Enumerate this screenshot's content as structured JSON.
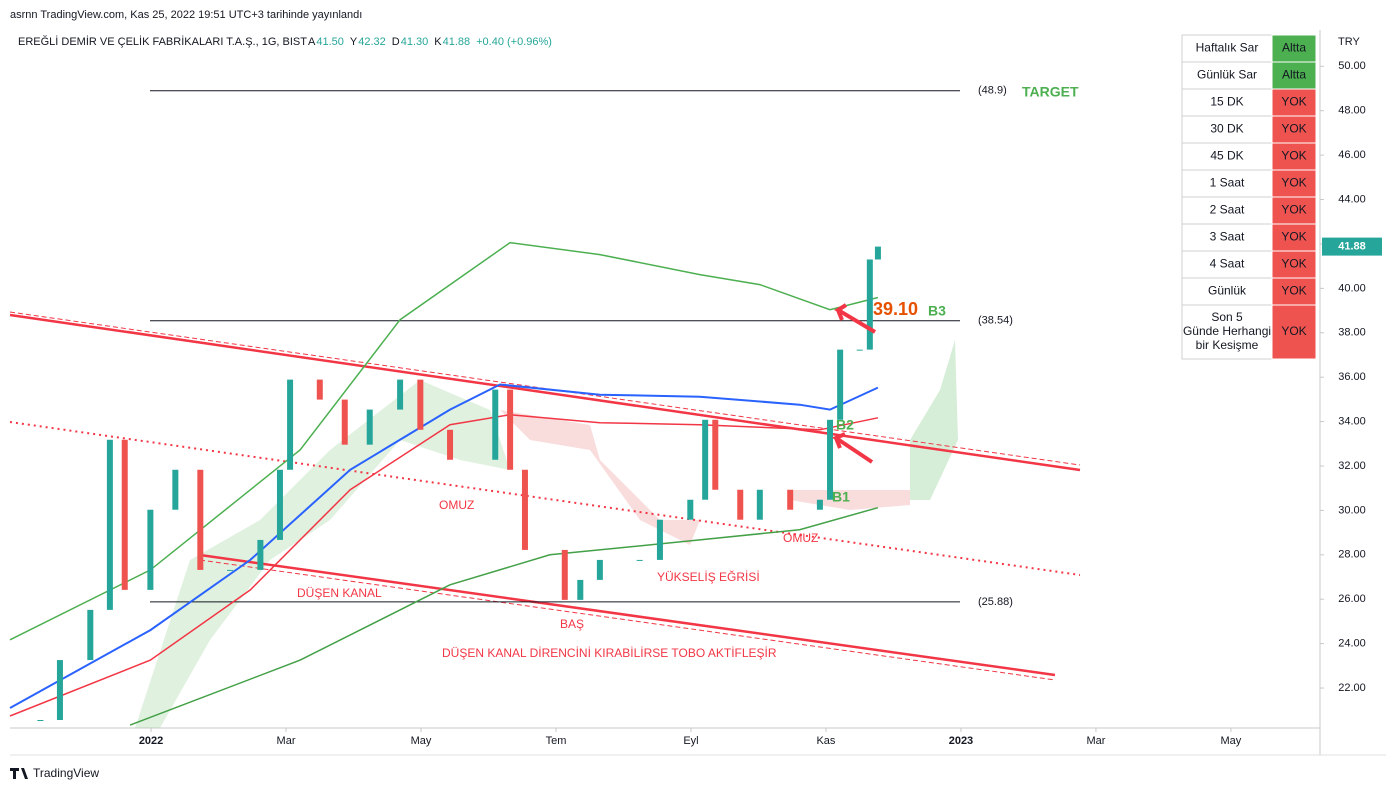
{
  "header": {
    "published": "asrnn TradingView.com, Kas 25, 2022 19:51 UTC+3 tarihinde yayınlandı",
    "symbol": "EREĞLİ DEMİR VE ÇELİK FABRİKALARI T.A.Ş., 1G, BIST",
    "ohlc": [
      {
        "key": "A",
        "value": "41.50"
      },
      {
        "key": "Y",
        "value": "42.32"
      },
      {
        "key": "D",
        "value": "41.30"
      },
      {
        "key": "K",
        "value": "41.88"
      }
    ],
    "change": "+0.40 (+0.96%)",
    "currency": "TRY",
    "footer": "TradingView"
  },
  "chart_data": {
    "type": "candlestick",
    "x": [
      -1.64,
      -1.35,
      -0.9,
      -0.61,
      -0.39,
      -0.01,
      0.36,
      0.73,
      1.17,
      1.62,
      1.91,
      2.06,
      2.5,
      2.87,
      3.24,
      3.69,
      3.99,
      4.43,
      5.1,
      5.32,
      5.54,
      6.13,
      6.36,
      6.65,
      7.24,
      7.54,
      7.99,
      8.21,
      8.36,
      8.73,
      9.02,
      9.47,
      9.91,
      10.06,
      10.21,
      10.5,
      10.65,
      10.77
    ],
    "values": [
      20.56,
      23.26,
      25.52,
      33.18,
      26.42,
      30.03,
      31.83,
      27.32,
      27.32,
      28.67,
      31.83,
      35.89,
      34.99,
      32.96,
      34.54,
      35.89,
      33.63,
      32.28,
      35.44,
      31.83,
      28.22,
      25.97,
      26.87,
      27.77,
      27.77,
      29.58,
      30.48,
      34.08,
      30.93,
      29.58,
      30.93,
      30.03,
      30.48,
      34.08,
      37.24,
      37.24,
      41.3,
      41.88
    ],
    "series": [
      {
        "color": "#2962ff",
        "x": [
          -2.09,
          -0.01,
          1.47,
          2.95,
          4.43,
          5.17,
          6.65,
          8.13,
          9.61,
          10.06,
          10.77
        ],
        "values": [
          21.1,
          24.61,
          27.77,
          31.83,
          34.54,
          35.67,
          35.21,
          35.12,
          34.76,
          34.54,
          35.53
        ]
      },
      {
        "color": "#f23645",
        "x": [
          -2.09,
          -0.01,
          1.47,
          2.95,
          4.43,
          5.32,
          6.65,
          8.13,
          9.91,
          10.77
        ],
        "values": [
          20.74,
          23.26,
          26.42,
          30.93,
          33.86,
          34.31,
          33.95,
          33.86,
          33.63,
          34.17
        ]
      },
      {
        "color": "#43a047",
        "x": [
          -0.31,
          2.21,
          4.43,
          5.91,
          8.13,
          9.61,
          10.77
        ],
        "values": [
          20.33,
          23.26,
          26.65,
          28.0,
          28.67,
          29.13,
          30.12
        ]
      },
      {
        "color": "#4caf50",
        "x": [
          -2.09,
          -0.01,
          2.21,
          3.69,
          5.32,
          6.65,
          8.13,
          9.02,
          10.06,
          10.77
        ],
        "values": [
          24.17,
          27.32,
          32.73,
          38.59,
          42.06,
          41.52,
          40.62,
          40.17,
          39.04,
          39.59
        ]
      }
    ],
    "up_color": "#26a69a",
    "down_color": "#ef5350",
    "levels": [
      {
        "value": 48.9,
        "label": "(48.9)"
      },
      {
        "value": 38.54,
        "label": "(38.54)"
      },
      {
        "value": 25.88,
        "label": "(25.88)"
      }
    ],
    "last": {
      "value": 41.88,
      "label": "41.88"
    },
    "annotations": [
      "TARGET",
      "39.10",
      "B3",
      "B2",
      "B1",
      "OMUZ",
      "OMUZ",
      "BAŞ",
      "YÜKSELİŞ EĞRİSİ",
      "DÜŞEN KANAL",
      "DÜŞEN KANAL DİRENCİNİ KIRABİLİRSE TOBO AKTİFLEŞİR"
    ],
    "xlim": [
      -2.09,
      17.32
    ],
    "xticks": [
      {
        "value": 0,
        "label": "2022"
      },
      {
        "value": 2,
        "label": "Mar"
      },
      {
        "value": 4,
        "label": "May"
      },
      {
        "value": 6,
        "label": "Tem"
      },
      {
        "value": 8,
        "label": "Eyl"
      },
      {
        "value": 10,
        "label": "Kas"
      },
      {
        "value": 12,
        "label": "2023"
      },
      {
        "value": 14,
        "label": "Mar"
      },
      {
        "value": 16,
        "label": "May"
      }
    ],
    "ylim": [
      20.2,
      51.5
    ],
    "yticks": [
      {
        "value": 22,
        "label": "22.00"
      },
      {
        "value": 24,
        "label": "24.00"
      },
      {
        "value": 26,
        "label": "26.00"
      },
      {
        "value": 28,
        "label": "28.00"
      },
      {
        "value": 30,
        "label": "30.00"
      },
      {
        "value": 32,
        "label": "32.00"
      },
      {
        "value": 34,
        "label": "34.00"
      },
      {
        "value": 36,
        "label": "36.00"
      },
      {
        "value": 38,
        "label": "38.00"
      },
      {
        "value": 40,
        "label": "40.00"
      },
      {
        "value": 42,
        "label": "42.00"
      },
      {
        "value": 44,
        "label": "44.00"
      },
      {
        "value": 46,
        "label": "46.00"
      },
      {
        "value": 48,
        "label": "48.00"
      },
      {
        "value": 50,
        "label": "50.00"
      }
    ]
  },
  "table": {
    "rows": [
      {
        "label": "Haftalık Sar",
        "status": "Altta",
        "color": "#4caf50"
      },
      {
        "label": "Günlük Sar",
        "status": "Altta",
        "color": "#4caf50"
      },
      {
        "label": "15 DK",
        "status": "YOK",
        "color": "#ef5350"
      },
      {
        "label": "30 DK",
        "status": "YOK",
        "color": "#ef5350"
      },
      {
        "label": "45 DK",
        "status": "YOK",
        "color": "#ef5350"
      },
      {
        "label": "1 Saat",
        "status": "YOK",
        "color": "#ef5350"
      },
      {
        "label": "2 Saat",
        "status": "YOK",
        "color": "#ef5350"
      },
      {
        "label": "3 Saat",
        "status": "YOK",
        "color": "#ef5350"
      },
      {
        "label": "4 Saat",
        "status": "YOK",
        "color": "#ef5350"
      },
      {
        "label": "Günlük",
        "status": "YOK",
        "color": "#ef5350"
      },
      {
        "label": "Son 5 Günde Herhangi bir Kesişme",
        "status": "YOK",
        "color": "#ef5350"
      }
    ]
  }
}
